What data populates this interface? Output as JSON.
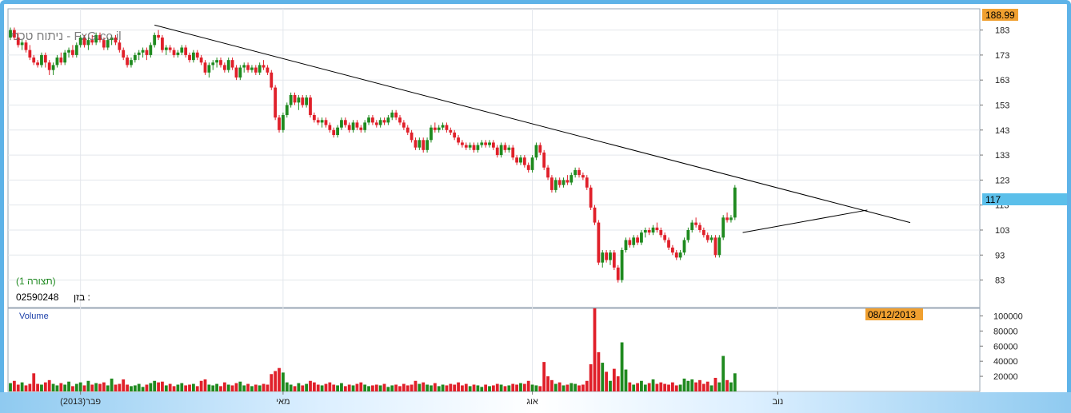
{
  "watermark": "ניתוח טכני - FxG.co.il",
  "chart_label": "(תצורה 1)",
  "security_line": {
    "label": "בזן :",
    "code": "02590248"
  },
  "price_top_value": "188.99",
  "current_price": "117",
  "current_date": "08/12/2013",
  "volume_label": "Volume",
  "colors": {
    "up": "#1f8a1f",
    "down": "#e0202a",
    "price_tag": "#f0a030",
    "current_tag": "#5bbfea",
    "frame": "#5eb3e8"
  },
  "chart_data": {
    "type": "candlestick",
    "y_ticks": [
      183,
      173,
      163,
      153,
      143,
      133,
      123,
      113,
      103,
      93,
      83
    ],
    "ylim": [
      72,
      191.5
    ],
    "volume_ticks": [
      100000,
      80000,
      60000,
      40000,
      20000
    ],
    "volume_ylim": [
      0,
      110000
    ],
    "x_labels": [
      {
        "label": "פבר(2013)",
        "index": 18
      },
      {
        "label": "מאי",
        "index": 70
      },
      {
        "label": "אוג",
        "index": 134
      },
      {
        "label": "נוב",
        "index": 197
      }
    ],
    "candles": [
      [
        180,
        184,
        179,
        183,
        11000
      ],
      [
        183,
        184,
        179,
        180,
        14000
      ],
      [
        180,
        182,
        176,
        177,
        9000
      ],
      [
        177,
        179,
        175,
        178,
        12000
      ],
      [
        178,
        179,
        174,
        175,
        8000
      ],
      [
        175,
        177,
        171,
        172,
        10000
      ],
      [
        172,
        173,
        169,
        170,
        24000
      ],
      [
        170,
        171,
        168,
        169,
        10000
      ],
      [
        169,
        174,
        168,
        173,
        9000
      ],
      [
        173,
        174,
        168,
        170,
        12000
      ],
      [
        170,
        171,
        165,
        167,
        15000
      ],
      [
        167,
        170,
        165,
        169,
        10000
      ],
      [
        169,
        173,
        168,
        172,
        8000
      ],
      [
        172,
        174,
        169,
        170,
        11000
      ],
      [
        170,
        175,
        169,
        174,
        9000
      ],
      [
        174,
        176,
        172,
        175,
        13000
      ],
      [
        175,
        177,
        172,
        173,
        7000
      ],
      [
        173,
        178,
        172,
        177,
        10000
      ],
      [
        177,
        181,
        176,
        180,
        12000
      ],
      [
        180,
        181,
        176,
        177,
        8000
      ],
      [
        177,
        180,
        175,
        179,
        14000
      ],
      [
        179,
        181,
        177,
        178,
        9000
      ],
      [
        178,
        182,
        177,
        181,
        11000
      ],
      [
        181,
        182,
        178,
        179,
        10000
      ],
      [
        179,
        180,
        175,
        176,
        12000
      ],
      [
        176,
        180,
        175,
        179,
        8000
      ],
      [
        179,
        181,
        177,
        180,
        17000
      ],
      [
        180,
        181,
        177,
        178,
        9000
      ],
      [
        178,
        179,
        174,
        175,
        10000
      ],
      [
        175,
        176,
        171,
        172,
        16000
      ],
      [
        172,
        173,
        168,
        169,
        9000
      ],
      [
        169,
        172,
        168,
        171,
        7000
      ],
      [
        171,
        174,
        170,
        173,
        8000
      ],
      [
        173,
        175,
        171,
        174,
        10000
      ],
      [
        174,
        176,
        172,
        175,
        6000
      ],
      [
        175,
        176,
        171,
        173,
        9000
      ],
      [
        173,
        178,
        172,
        177,
        11000
      ],
      [
        177,
        182,
        176,
        181,
        14000
      ],
      [
        181,
        183,
        179,
        180,
        12000
      ],
      [
        180,
        181,
        174,
        175,
        13000
      ],
      [
        175,
        177,
        173,
        176,
        8000
      ],
      [
        176,
        177,
        174,
        175,
        10000
      ],
      [
        175,
        176,
        172,
        173,
        7000
      ],
      [
        173,
        175,
        172,
        174,
        9000
      ],
      [
        174,
        177,
        173,
        176,
        11000
      ],
      [
        176,
        177,
        172,
        173,
        8000
      ],
      [
        173,
        174,
        170,
        171,
        9000
      ],
      [
        171,
        175,
        170,
        174,
        10000
      ],
      [
        174,
        175,
        171,
        172,
        7000
      ],
      [
        172,
        173,
        169,
        170,
        14000
      ],
      [
        170,
        171,
        165,
        166,
        16000
      ],
      [
        166,
        170,
        164,
        169,
        9000
      ],
      [
        169,
        171,
        167,
        170,
        8000
      ],
      [
        170,
        172,
        168,
        171,
        10000
      ],
      [
        171,
        172,
        168,
        169,
        7000
      ],
      [
        169,
        170,
        166,
        167,
        12000
      ],
      [
        167,
        172,
        166,
        171,
        9000
      ],
      [
        171,
        172,
        167,
        168,
        8000
      ],
      [
        168,
        169,
        163,
        164,
        11000
      ],
      [
        164,
        169,
        163,
        168,
        13000
      ],
      [
        168,
        170,
        166,
        169,
        8000
      ],
      [
        169,
        170,
        166,
        167,
        10000
      ],
      [
        167,
        169,
        166,
        168,
        7000
      ],
      [
        168,
        169,
        165,
        166,
        9000
      ],
      [
        166,
        170,
        165,
        169,
        8000
      ],
      [
        169,
        171,
        167,
        168,
        10000
      ],
      [
        168,
        169,
        165,
        166,
        9000
      ],
      [
        166,
        167,
        159,
        160,
        23000
      ],
      [
        160,
        161,
        147,
        148,
        27000
      ],
      [
        148,
        149,
        142,
        143,
        31000
      ],
      [
        143,
        150,
        142,
        149,
        25000
      ],
      [
        149,
        154,
        148,
        153,
        12000
      ],
      [
        153,
        158,
        152,
        157,
        9000
      ],
      [
        157,
        158,
        153,
        154,
        7000
      ],
      [
        154,
        157,
        151,
        156,
        11000
      ],
      [
        156,
        157,
        152,
        153,
        8000
      ],
      [
        153,
        157,
        152,
        156,
        10000
      ],
      [
        156,
        157,
        148,
        149,
        14000
      ],
      [
        149,
        150,
        146,
        147,
        12000
      ],
      [
        147,
        148,
        145,
        146,
        9000
      ],
      [
        146,
        148,
        144,
        147,
        8000
      ],
      [
        147,
        148,
        144,
        145,
        10000
      ],
      [
        145,
        146,
        142,
        143,
        12000
      ],
      [
        143,
        144,
        140,
        141,
        9000
      ],
      [
        141,
        145,
        140,
        144,
        8000
      ],
      [
        144,
        148,
        143,
        147,
        11000
      ],
      [
        147,
        148,
        144,
        145,
        7000
      ],
      [
        145,
        146,
        142,
        143,
        9000
      ],
      [
        143,
        147,
        142,
        146,
        8000
      ],
      [
        146,
        147,
        143,
        144,
        10000
      ],
      [
        144,
        145,
        142,
        143,
        12000
      ],
      [
        143,
        147,
        142,
        146,
        9000
      ],
      [
        146,
        149,
        145,
        148,
        7000
      ],
      [
        148,
        149,
        145,
        146,
        8000
      ],
      [
        146,
        147,
        144,
        145,
        9000
      ],
      [
        145,
        148,
        144,
        147,
        8000
      ],
      [
        147,
        148,
        145,
        146,
        10000
      ],
      [
        146,
        149,
        145,
        148,
        6000
      ],
      [
        148,
        151,
        147,
        150,
        8000
      ],
      [
        150,
        151,
        147,
        148,
        9000
      ],
      [
        148,
        149,
        145,
        146,
        7000
      ],
      [
        146,
        147,
        143,
        144,
        10000
      ],
      [
        144,
        145,
        141,
        142,
        8000
      ],
      [
        142,
        143,
        138,
        139,
        9000
      ],
      [
        139,
        140,
        135,
        136,
        14000
      ],
      [
        136,
        140,
        135,
        139,
        10000
      ],
      [
        139,
        140,
        134,
        135,
        12000
      ],
      [
        135,
        140,
        134,
        139,
        9000
      ],
      [
        139,
        145,
        138,
        144,
        8000
      ],
      [
        144,
        146,
        142,
        143,
        11000
      ],
      [
        143,
        145,
        142,
        144,
        7000
      ],
      [
        144,
        146,
        143,
        145,
        9000
      ],
      [
        145,
        146,
        142,
        143,
        8000
      ],
      [
        143,
        144,
        141,
        142,
        10000
      ],
      [
        142,
        143,
        139,
        140,
        9000
      ],
      [
        140,
        141,
        137,
        138,
        12000
      ],
      [
        138,
        139,
        136,
        137,
        8000
      ],
      [
        137,
        138,
        135,
        136,
        10000
      ],
      [
        136,
        138,
        135,
        137,
        7000
      ],
      [
        137,
        138,
        134,
        135,
        9000
      ],
      [
        135,
        138,
        134,
        137,
        8000
      ],
      [
        137,
        139,
        136,
        138,
        6000
      ],
      [
        138,
        139,
        136,
        137,
        9000
      ],
      [
        137,
        139,
        136,
        138,
        7000
      ],
      [
        138,
        139,
        135,
        136,
        8000
      ],
      [
        136,
        137,
        132,
        133,
        10000
      ],
      [
        133,
        138,
        132,
        137,
        9000
      ],
      [
        137,
        138,
        134,
        135,
        7000
      ],
      [
        135,
        137,
        134,
        136,
        8000
      ],
      [
        136,
        137,
        131,
        132,
        10000
      ],
      [
        132,
        133,
        129,
        130,
        9000
      ],
      [
        130,
        133,
        129,
        132,
        11000
      ],
      [
        132,
        133,
        128,
        129,
        10000
      ],
      [
        129,
        130,
        126,
        127,
        14000
      ],
      [
        127,
        133,
        126,
        132,
        9000
      ],
      [
        132,
        138,
        131,
        137,
        8000
      ],
      [
        137,
        138,
        133,
        134,
        7000
      ],
      [
        134,
        135,
        127,
        128,
        39000
      ],
      [
        128,
        129,
        123,
        124,
        20000
      ],
      [
        124,
        125,
        118,
        119,
        15000
      ],
      [
        119,
        124,
        118,
        123,
        10000
      ],
      [
        123,
        124,
        120,
        121,
        12000
      ],
      [
        121,
        124,
        120,
        123,
        8000
      ],
      [
        123,
        125,
        121,
        122,
        9000
      ],
      [
        122,
        126,
        121,
        125,
        11000
      ],
      [
        125,
        128,
        124,
        127,
        10000
      ],
      [
        127,
        128,
        124,
        125,
        8000
      ],
      [
        125,
        126,
        123,
        124,
        9000
      ],
      [
        124,
        125,
        119,
        120,
        14000
      ],
      [
        120,
        121,
        111,
        112,
        36000
      ],
      [
        112,
        113,
        105,
        106,
        110000
      ],
      [
        106,
        107,
        89,
        90,
        52000
      ],
      [
        90,
        95,
        88,
        94,
        38000
      ],
      [
        94,
        95,
        90,
        91,
        26000
      ],
      [
        91,
        95,
        89,
        94,
        14000
      ],
      [
        94,
        95,
        87,
        88,
        30000
      ],
      [
        88,
        89,
        82,
        83,
        20000
      ],
      [
        83,
        96,
        82,
        95,
        65000
      ],
      [
        95,
        100,
        94,
        99,
        29000
      ],
      [
        99,
        100,
        96,
        97,
        12000
      ],
      [
        97,
        101,
        96,
        100,
        9000
      ],
      [
        100,
        101,
        97,
        98,
        11000
      ],
      [
        98,
        103,
        97,
        102,
        14000
      ],
      [
        102,
        104,
        100,
        103,
        9000
      ],
      [
        103,
        104,
        101,
        102,
        11000
      ],
      [
        102,
        105,
        101,
        104,
        16000
      ],
      [
        104,
        106,
        102,
        103,
        10000
      ],
      [
        103,
        104,
        100,
        101,
        12000
      ],
      [
        101,
        102,
        98,
        99,
        10000
      ],
      [
        99,
        100,
        95,
        96,
        9000
      ],
      [
        96,
        97,
        93,
        94,
        12000
      ],
      [
        94,
        95,
        91,
        92,
        8000
      ],
      [
        92,
        95,
        91,
        94,
        9000
      ],
      [
        94,
        100,
        93,
        99,
        17000
      ],
      [
        99,
        104,
        98,
        103,
        14000
      ],
      [
        103,
        107,
        102,
        106,
        16000
      ],
      [
        106,
        108,
        104,
        105,
        12000
      ],
      [
        105,
        106,
        102,
        103,
        15000
      ],
      [
        103,
        104,
        100,
        101,
        10000
      ],
      [
        101,
        102,
        98,
        99,
        13000
      ],
      [
        99,
        101,
        98,
        100,
        8000
      ],
      [
        100,
        101,
        92,
        93,
        18000
      ],
      [
        93,
        101,
        92,
        100,
        12000
      ],
      [
        100,
        109,
        99,
        108,
        47000
      ],
      [
        108,
        110,
        106,
        107,
        15000
      ],
      [
        107,
        109,
        106,
        108,
        12000
      ],
      [
        108,
        121,
        107,
        120,
        24000
      ]
    ],
    "trendlines": [
      {
        "from": [
          37,
          185
        ],
        "to": [
          231,
          106
        ]
      },
      {
        "from": [
          188,
          102
        ],
        "to": [
          220,
          111
        ]
      }
    ]
  }
}
